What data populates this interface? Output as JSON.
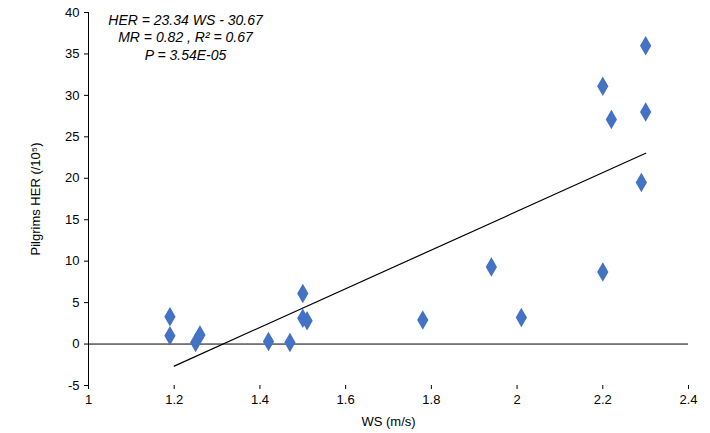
{
  "chart_data": {
    "type": "scatter",
    "x_label": "WS (m/s)",
    "y_label": "Pilgrims HER (/10⁵)",
    "annotations": [
      "HER = 23.34 WS - 30.67",
      "MR = 0.82 , R² = 0.67",
      "P = 3.54E-05"
    ],
    "x": [
      1.19,
      1.19,
      1.25,
      1.26,
      1.42,
      1.47,
      1.5,
      1.5,
      1.51,
      1.78,
      1.94,
      2.01,
      2.2,
      2.22,
      2.2,
      2.29,
      2.3,
      2.3
    ],
    "values": [
      3.3,
      1.0,
      0.2,
      1.1,
      0.3,
      0.2,
      6.1,
      3.1,
      2.8,
      2.9,
      9.3,
      3.2,
      31.1,
      27.1,
      8.7,
      19.5,
      36.0,
      28.0
    ],
    "color": "#4472c4",
    "marker": "diamond",
    "trend_line": {
      "x": [
        1.2,
        2.3
      ],
      "y": [
        -2.66,
        23.01
      ],
      "color": "#000000"
    },
    "xlim": [
      1,
      2.4
    ],
    "xticks": [
      1,
      1.2,
      1.4,
      1.6,
      1.8,
      2,
      2.2,
      2.4
    ],
    "ylim": [
      -5,
      40
    ],
    "yticks": [
      -5,
      0,
      5,
      10,
      15,
      20,
      25,
      30,
      35,
      40
    ],
    "grid": false
  }
}
